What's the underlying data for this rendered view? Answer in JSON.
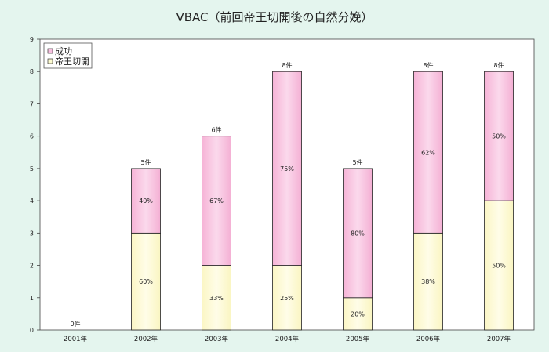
{
  "chart_data": {
    "type": "bar",
    "stacked": true,
    "title": "VBAC（前回帝王切開後の自然分娩）",
    "categories": [
      "2001年",
      "2002年",
      "2003年",
      "2004年",
      "2005年",
      "2006年",
      "2007年"
    ],
    "series": [
      {
        "name": "帝王切開",
        "values": [
          0,
          3,
          2,
          2,
          1,
          3,
          4
        ],
        "labels": [
          "",
          "60%",
          "33%",
          "25%",
          "20%",
          "38%",
          "50%"
        ],
        "color": "#fdfbd0"
      },
      {
        "name": "成功",
        "values": [
          0,
          2,
          4,
          6,
          4,
          5,
          4
        ],
        "labels": [
          "",
          "40%",
          "67%",
          "75%",
          "80%",
          "62%",
          "50%"
        ],
        "color": "#f7c0df"
      }
    ],
    "totals": [
      "0件",
      "5件",
      "6件",
      "8件",
      "5件",
      "8件",
      "8件"
    ],
    "ylim": [
      0,
      9
    ],
    "yticks": [
      "0",
      "1",
      "2",
      "3",
      "4",
      "5",
      "6",
      "7",
      "8",
      "9"
    ],
    "xlabel": "",
    "ylabel": "",
    "grid": false,
    "legend": "top-left",
    "plot_background": "#ffffff"
  }
}
